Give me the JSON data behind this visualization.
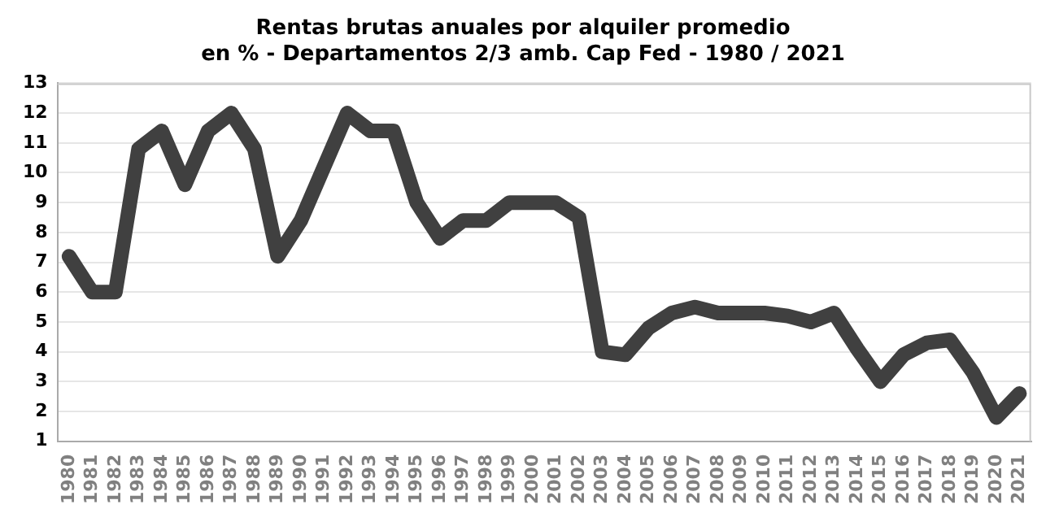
{
  "chart_data": {
    "type": "line",
    "title": "Rentas brutas anuales por alquiler promedio\nen % - Departamentos 2/3 amb. Cap Fed - 1980 / 2021",
    "categories": [
      "1980",
      "1981",
      "1982",
      "1983",
      "1984",
      "1985",
      "1986",
      "1987",
      "1988",
      "1989",
      "1990",
      "1991",
      "1992",
      "1993",
      "1994",
      "1995",
      "1996",
      "1997",
      "1998",
      "1999",
      "2000",
      "2001",
      "2002",
      "2003",
      "2004",
      "2005",
      "2006",
      "2007",
      "2008",
      "2009",
      "2010",
      "2011",
      "2012",
      "2013",
      "2014",
      "2015",
      "2016",
      "2017",
      "2018",
      "2019",
      "2020",
      "2021"
    ],
    "series": [
      {
        "color": "#404040",
        "values": [
          7.2,
          6.0,
          6.0,
          10.8,
          11.4,
          9.6,
          11.4,
          12.0,
          10.8,
          7.2,
          8.4,
          10.2,
          12.0,
          11.4,
          11.4,
          9.0,
          7.8,
          8.4,
          8.4,
          9.0,
          9.0,
          9.0,
          8.5,
          4.0,
          3.9,
          4.8,
          5.3,
          5.5,
          5.3,
          5.3,
          5.3,
          5.2,
          5.0,
          5.3,
          4.1,
          3.0,
          3.9,
          4.3,
          4.4,
          3.3,
          1.8,
          2.6
        ]
      }
    ],
    "ylim": [
      1,
      13
    ],
    "yticks": [
      1,
      2,
      3,
      4,
      5,
      6,
      7,
      8,
      9,
      10,
      11,
      12,
      13
    ],
    "grid": "y",
    "legend": false,
    "marker": "none",
    "line_style": "solid"
  }
}
